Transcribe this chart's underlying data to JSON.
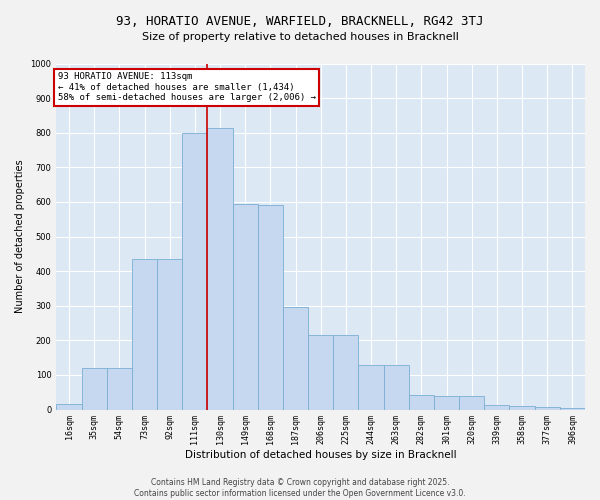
{
  "title_line1": "93, HORATIO AVENUE, WARFIELD, BRACKNELL, RG42 3TJ",
  "title_line2": "Size of property relative to detached houses in Bracknell",
  "xlabel": "Distribution of detached houses by size in Bracknell",
  "ylabel": "Number of detached properties",
  "bar_values": [
    15,
    120,
    120,
    435,
    435,
    800,
    815,
    595,
    590,
    295,
    215,
    215,
    130,
    130,
    42,
    40,
    38,
    12,
    10,
    7,
    5
  ],
  "bin_labels": [
    "16sqm",
    "35sqm",
    "54sqm",
    "73sqm",
    "92sqm",
    "111sqm",
    "130sqm",
    "149sqm",
    "168sqm",
    "187sqm",
    "206sqm",
    "225sqm",
    "244sqm",
    "263sqm",
    "282sqm",
    "301sqm",
    "320sqm",
    "339sqm",
    "358sqm",
    "377sqm",
    "396sqm"
  ],
  "bin_edges": [
    16,
    35,
    54,
    73,
    92,
    111,
    130,
    149,
    168,
    187,
    206,
    225,
    244,
    263,
    282,
    301,
    320,
    339,
    358,
    377,
    396
  ],
  "bar_color": "#c5d8ef",
  "bar_edge_color": "#7aaed4",
  "vline_color": "#cc0000",
  "annotation_text": "93 HORATIO AVENUE: 113sqm\n← 41% of detached houses are smaller (1,434)\n58% of semi-detached houses are larger (2,006) →",
  "annotation_box_color": "#cc0000",
  "ylim": [
    0,
    1000
  ],
  "yticks": [
    0,
    100,
    200,
    300,
    400,
    500,
    600,
    700,
    800,
    900,
    1000
  ],
  "background_color": "#dce9f5",
  "grid_color": "#ffffff",
  "fig_background": "#f2f2f2",
  "footer_line1": "Contains HM Land Registry data © Crown copyright and database right 2025.",
  "footer_line2": "Contains public sector information licensed under the Open Government Licence v3.0.",
  "title_fontsize": 9,
  "subtitle_fontsize": 8,
  "axis_label_fontsize": 7.5,
  "tick_fontsize": 6,
  "annotation_fontsize": 6.5,
  "footer_fontsize": 5.5,
  "ylabel_fontsize": 7
}
